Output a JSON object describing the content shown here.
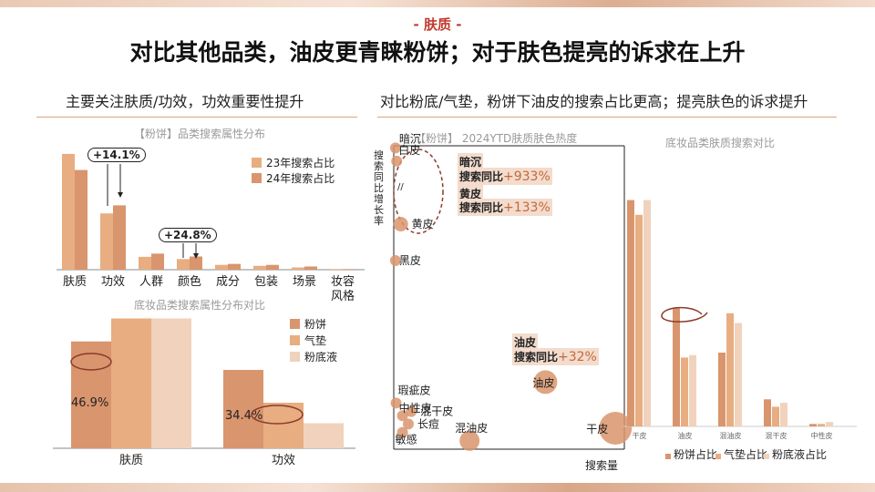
{
  "header": {
    "tag": "- 肤质 -",
    "title": "对比其他品类，油皮更青睐粉饼；对于肤色提亮的诉求在上升",
    "left_subtitle": "主要关注肤质/功效，功效重要性提升",
    "right_subtitle": "对比粉底/气垫，粉饼下油皮的搜索占比更高；提亮肤色的诉求提升"
  },
  "colors": {
    "c1": "#d9956d",
    "c2": "#e8ad80",
    "c3": "#f0d2bd",
    "accent": "#c46a39",
    "circle": "#8b3b2c"
  },
  "chart_data": [
    {
      "type": "bar",
      "title": "【粉饼】品类搜索属性分布",
      "categories": [
        "肤质",
        "功效",
        "人群",
        "颜色",
        "成分",
        "包装",
        "场景",
        "妆容风格"
      ],
      "category_display": [
        "肤质",
        "功效",
        "人群",
        "颜色",
        "成分",
        "包装",
        "场景",
        "妆容\n风格"
      ],
      "series": [
        {
          "name": "23年搜索占比",
          "values": [
            36,
            17.5,
            4,
            3.3,
            1.5,
            1.2,
            0.7,
            0.2
          ]
        },
        {
          "name": "24年搜索占比",
          "values": [
            31,
            20,
            5,
            4.1,
            1.8,
            1.5,
            1.0,
            0.2
          ]
        }
      ],
      "annotations": [
        {
          "text": "+14.1%",
          "category": "功效"
        },
        {
          "text": "+24.8%",
          "category": "颜色"
        }
      ],
      "legend": "top-right"
    },
    {
      "type": "bar",
      "title": "底妆品类搜索属性分布对比",
      "categories": [
        "肤质",
        "功效"
      ],
      "series": [
        {
          "name": "粉饼",
          "values": [
            46.9,
            34.4
          ]
        },
        {
          "name": "气垫",
          "values": [
            57,
            20
          ]
        },
        {
          "name": "粉底液",
          "values": [
            57,
            11
          ]
        }
      ],
      "data_labels": [
        "46.9%",
        "34.4%"
      ],
      "legend": "right"
    },
    {
      "type": "scatter",
      "title": "【粉饼】 2024YTD肤质肤色热度",
      "xlabel": "搜索量",
      "ylabel": "搜索同比增长率",
      "points": [
        {
          "label": "暗沉",
          "x": 0.3,
          "y": 9.33
        },
        {
          "label": "白皮",
          "x": 0.5,
          "y": 5.3
        },
        {
          "label": "黄皮",
          "x": 1.2,
          "y": 1.33
        },
        {
          "label": "黑皮",
          "x": 0.3,
          "y": 0.9
        },
        {
          "label": "油皮",
          "x": 26,
          "y": 0.32
        },
        {
          "label": "干皮",
          "x": 38,
          "y": 0.1
        },
        {
          "label": "瑕疵皮",
          "x": 0.4,
          "y": 0.22
        },
        {
          "label": "混干皮",
          "x": 3,
          "y": 0.18
        },
        {
          "label": "中性皮",
          "x": 1.5,
          "y": 0.16
        },
        {
          "label": "长痘",
          "x": 2.5,
          "y": 0.12
        },
        {
          "label": "敏感",
          "x": 1.5,
          "y": 0.08
        },
        {
          "label": "混油皮",
          "x": 13,
          "y": 0.04
        }
      ],
      "callouts": [
        {
          "name": "暗沉",
          "metric": "搜索同比",
          "value": "+933%"
        },
        {
          "name": "黄皮",
          "metric": "搜索同比",
          "value": "+133%"
        },
        {
          "name": "油皮",
          "metric": "搜索同比",
          "value": "+32%"
        }
      ]
    },
    {
      "type": "bar",
      "title": "底妆品类肤质搜索对比",
      "categories": [
        "干皮",
        "油皮",
        "混油皮",
        "混干皮",
        "中性皮"
      ],
      "series": [
        {
          "name": "粉饼占比",
          "values": [
            46,
            24,
            15,
            5.5,
            0.5
          ]
        },
        {
          "name": "气垫占比",
          "values": [
            43,
            14,
            23,
            4,
            0.5
          ]
        },
        {
          "name": "粉底液占比",
          "values": [
            46,
            14.5,
            21,
            4.8,
            0.9
          ]
        }
      ],
      "legend": "bottom"
    }
  ]
}
